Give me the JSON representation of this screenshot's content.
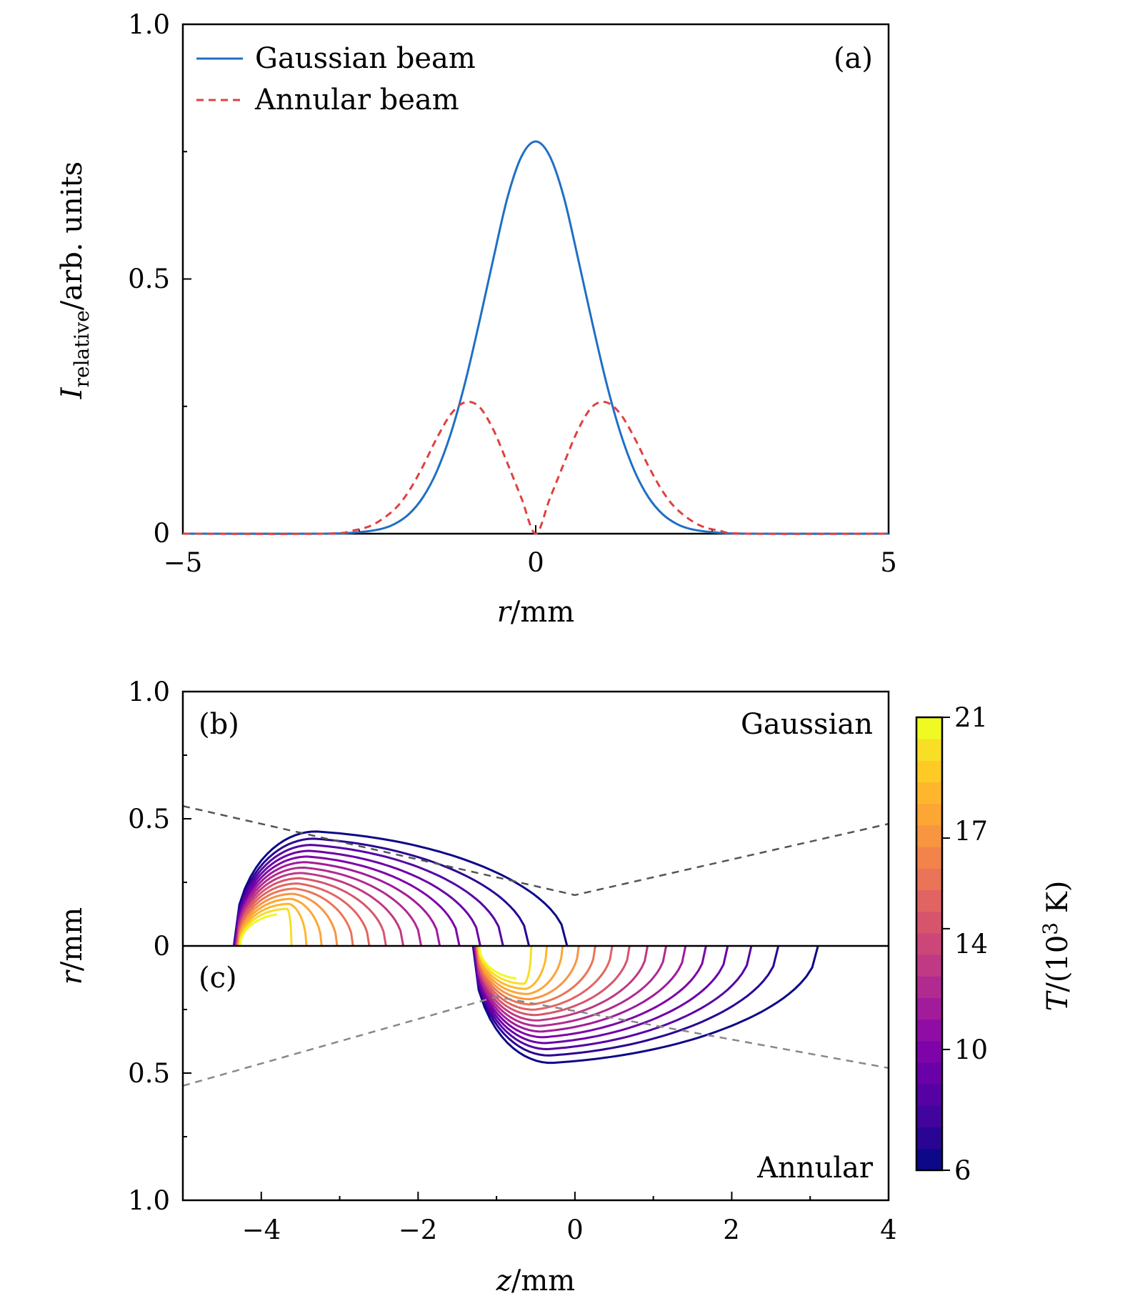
{
  "chart_data": [
    {
      "type": "line",
      "panel_label": "(a)",
      "xlabel_var": "r",
      "xlabel_unit": "/mm",
      "ylabel_var": "I",
      "ylabel_sub": "relative",
      "ylabel_unit": "/arb. units",
      "xlim": [
        -5,
        5
      ],
      "ylim": [
        0,
        1.0
      ],
      "xticks": [
        -5,
        0,
        5
      ],
      "xtick_labels": [
        "−5",
        "0",
        "5"
      ],
      "yticks": [
        0,
        0.5,
        1.0
      ],
      "ytick_labels": [
        "0",
        "0.5",
        "1.0"
      ],
      "legend_position": "top-left",
      "series": [
        {
          "name": "Gaussian beam",
          "color": "#1f6fc5",
          "style": "solid",
          "x": [
            -5,
            -3,
            -2.5,
            -2.2,
            -2,
            -1.8,
            -1.6,
            -1.4,
            -1.2,
            -1,
            -0.8,
            -0.6,
            -0.4,
            -0.2,
            0,
            0.2,
            0.4,
            0.6,
            0.8,
            1,
            1.2,
            1.4,
            1.6,
            1.8,
            2,
            2.2,
            2.5,
            3,
            5
          ],
          "y": [
            0,
            0,
            0.003,
            0.009,
            0.019,
            0.038,
            0.071,
            0.123,
            0.198,
            0.297,
            0.415,
            0.54,
            0.66,
            0.741,
            0.77,
            0.741,
            0.66,
            0.54,
            0.415,
            0.297,
            0.198,
            0.123,
            0.071,
            0.038,
            0.019,
            0.009,
            0.003,
            0,
            0
          ]
        },
        {
          "name": "Annular beam",
          "color": "#e04040",
          "style": "dashed",
          "x": [
            -5,
            -3,
            -2.6,
            -2.3,
            -2,
            -1.8,
            -1.6,
            -1.4,
            -1.2,
            -1.0,
            -0.8,
            -0.6,
            -0.4,
            -0.2,
            0,
            0.2,
            0.4,
            0.6,
            0.8,
            1.0,
            1.2,
            1.4,
            1.6,
            1.8,
            2,
            2.3,
            2.6,
            3,
            5
          ],
          "y": [
            0,
            0,
            0.006,
            0.018,
            0.048,
            0.083,
            0.132,
            0.188,
            0.235,
            0.258,
            0.249,
            0.204,
            0.138,
            0.069,
            0,
            0.069,
            0.138,
            0.204,
            0.249,
            0.258,
            0.235,
            0.188,
            0.132,
            0.083,
            0.048,
            0.018,
            0.006,
            0,
            0
          ]
        }
      ]
    },
    {
      "type": "contour",
      "panel_labels": [
        "(b)",
        "(c)"
      ],
      "top_label": "Gaussian",
      "bottom_label": "Annular",
      "xlabel_var": "z",
      "xlabel_unit": "/mm",
      "ylabel_var": "r",
      "ylabel_unit": "/mm",
      "xlim": [
        -5,
        4
      ],
      "xticks": [
        -4,
        -2,
        0,
        2,
        4
      ],
      "xtick_labels": [
        "−4",
        "−2",
        "0",
        "2",
        "4"
      ],
      "ytick_labels": [
        "1.0",
        "0.5",
        "0",
        "0.5",
        "1.0"
      ],
      "colorbar": {
        "label_var": "T",
        "label_unit": "/(10",
        "label_exp": "3",
        "label_tail": " K)",
        "range": [
          6,
          21
        ],
        "ticks": [
          6,
          10,
          14,
          17,
          21
        ],
        "tick_labels": [
          "6",
          "10",
          "14",
          "17",
          "21"
        ],
        "colors": [
          "#0d0887",
          "#2a0593",
          "#41049d",
          "#5601a4",
          "#6a00a8",
          "#7e03a8",
          "#8f0da4",
          "#a11b9b",
          "#b12a90",
          "#bf3984",
          "#cc4778",
          "#d6556d",
          "#e16462",
          "#ea7457",
          "#f2844b",
          "#f89540",
          "#fca636",
          "#feb72d",
          "#fdca26",
          "#f8df25",
          "#f0f921"
        ]
      },
      "gaussian": {
        "z_left": -4.35,
        "z_right_outer": -0.1,
        "r_max_outer": 0.45,
        "z_at_rmax": -3.3,
        "level_count": 16
      },
      "annular": {
        "z_left": -1.3,
        "z_right_outer": 3.1,
        "r_max_outer": 0.46,
        "z_at_rmax": -0.3,
        "level_count": 16
      },
      "gaussian_boundary": {
        "x": [
          -5,
          0,
          4
        ],
        "y": [
          0.55,
          0.2,
          0.48
        ],
        "color": "#555555"
      },
      "annular_boundary": {
        "x": [
          -5,
          -1,
          4
        ],
        "y": [
          0.55,
          0.2,
          0.48
        ],
        "color": "#888888"
      }
    }
  ]
}
